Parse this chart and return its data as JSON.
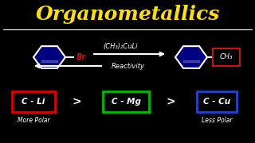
{
  "background_color": "#000000",
  "title": "Organometallics",
  "title_color": "#FFE000",
  "title_fontsize": 18,
  "separator_color": "#FFFFFF",
  "white": "#FFFFFF",
  "br_color": "#CC1111",
  "ch3_box_color": "#CC1111",
  "reagent_text": "(CH₃)₂CuLi",
  "reactivity_text": "Reactivity",
  "box_cli_color": "#DD0000",
  "box_cli_text": "C - Li",
  "box_cmg_color": "#00BB00",
  "box_cmg_text": "C - Mg",
  "box_ccu_color": "#2244CC",
  "box_ccu_text": "C - Cu",
  "more_polar_text": "More Polar",
  "less_polar_text": "Less Polar"
}
